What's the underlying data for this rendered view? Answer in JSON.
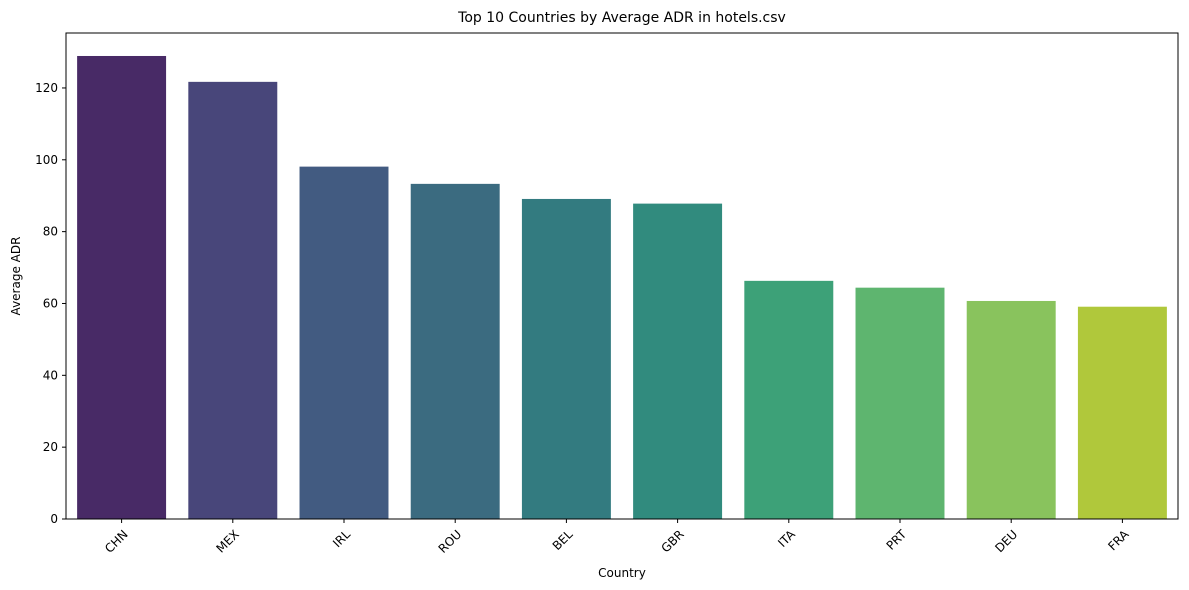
{
  "chart_data": {
    "type": "bar",
    "title": "Top 10 Countries by Average ADR in hotels.csv",
    "xlabel": "Country",
    "ylabel": "Average ADR",
    "categories": [
      "CHN",
      "MEX",
      "IRL",
      "ROU",
      "BEL",
      "GBR",
      "ITA",
      "PRT",
      "DEU",
      "FRA"
    ],
    "values": [
      128.9,
      121.7,
      98.1,
      93.3,
      89.1,
      87.8,
      66.3,
      64.4,
      60.7,
      59.1
    ],
    "colors": [
      "#482a66",
      "#48467a",
      "#425b81",
      "#3b6b80",
      "#337b80",
      "#318b7e",
      "#3da178",
      "#5eb56f",
      "#89c35d",
      "#b0c83b"
    ],
    "yticks": [
      0,
      20,
      40,
      60,
      80,
      100,
      120
    ],
    "ylim": [
      0,
      135.3
    ],
    "grid": false,
    "legend": "none"
  }
}
